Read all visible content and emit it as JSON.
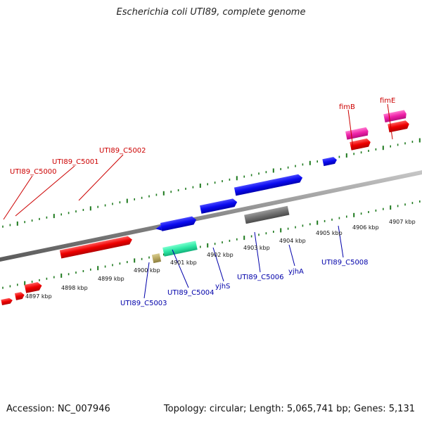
{
  "title": "Escherichia coli UTI89, complete genome",
  "footer": {
    "accession": "Accession: NC_007946",
    "summary": "Topology: circular; Length: 5,065,741 bp; Genes: 5,131"
  },
  "colors": {
    "label_upper": "#cc0000",
    "label_lower": "#0000aa",
    "tick": "#1e7a1e",
    "backbone": "#8a8a8a"
  },
  "kbp_labels": [
    "4897 kbp",
    "4898 kbp",
    "4899 kbp",
    "4900 kbp",
    "4901 kbp",
    "4902 kbp",
    "4903 kbp",
    "4904 kbp",
    "4905 kbp",
    "4906 kbp",
    "4907 kbp"
  ],
  "gene_labels_upper": [
    "UTI89_C5000",
    "UTI89_C5001",
    "UTI89_C5002",
    "fimB",
    "fimE"
  ],
  "gene_labels_lower": [
    "UTI89_C5003",
    "UTI89_C5004",
    "yjhS",
    "UTI89_C5006",
    "yjhA",
    "UTI89_C5008"
  ]
}
